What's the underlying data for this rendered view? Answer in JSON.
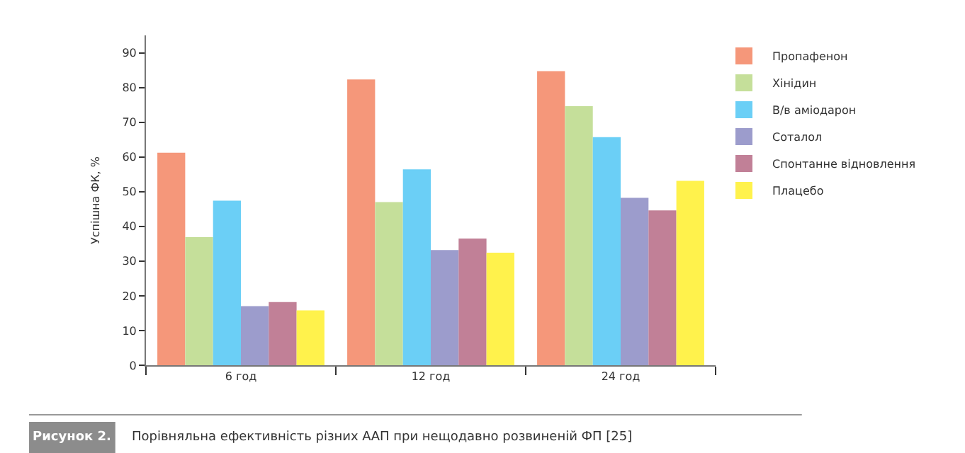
{
  "chart_data": {
    "type": "bar",
    "ylabel": "Успішна ФК, %",
    "categories": [
      "6 год",
      "12 год",
      "24 год"
    ],
    "series": [
      {
        "name": "Пропафенон",
        "color": "#f5977a",
        "values": [
          61.2,
          82.3,
          84.7
        ]
      },
      {
        "name": "Хінідин",
        "color": "#c5df9a",
        "values": [
          36.9,
          47,
          74.6
        ]
      },
      {
        "name": "В/в аміодарон",
        "color": "#6bcff6",
        "values": [
          47.4,
          56.4,
          65.7
        ]
      },
      {
        "name": "Соталол",
        "color": "#9c9ccc",
        "values": [
          17,
          33.2,
          48.2
        ]
      },
      {
        "name": "Спонтанне відновлення",
        "color": "#c18097",
        "values": [
          18.2,
          36.5,
          44.6
        ]
      },
      {
        "name": "Плацебо",
        "color": "#fff24c",
        "values": [
          15.8,
          32.4,
          53.1
        ]
      }
    ],
    "ylim": [
      0,
      95
    ],
    "yticks": [
      0,
      10,
      20,
      30,
      40,
      50,
      60,
      70,
      80,
      90
    ],
    "legend": "right",
    "annotations": [
      "Рисунок 2.",
      "Порівняльна ефективність різних ААП при нещодавно розвиненій ФП [25]"
    ]
  }
}
